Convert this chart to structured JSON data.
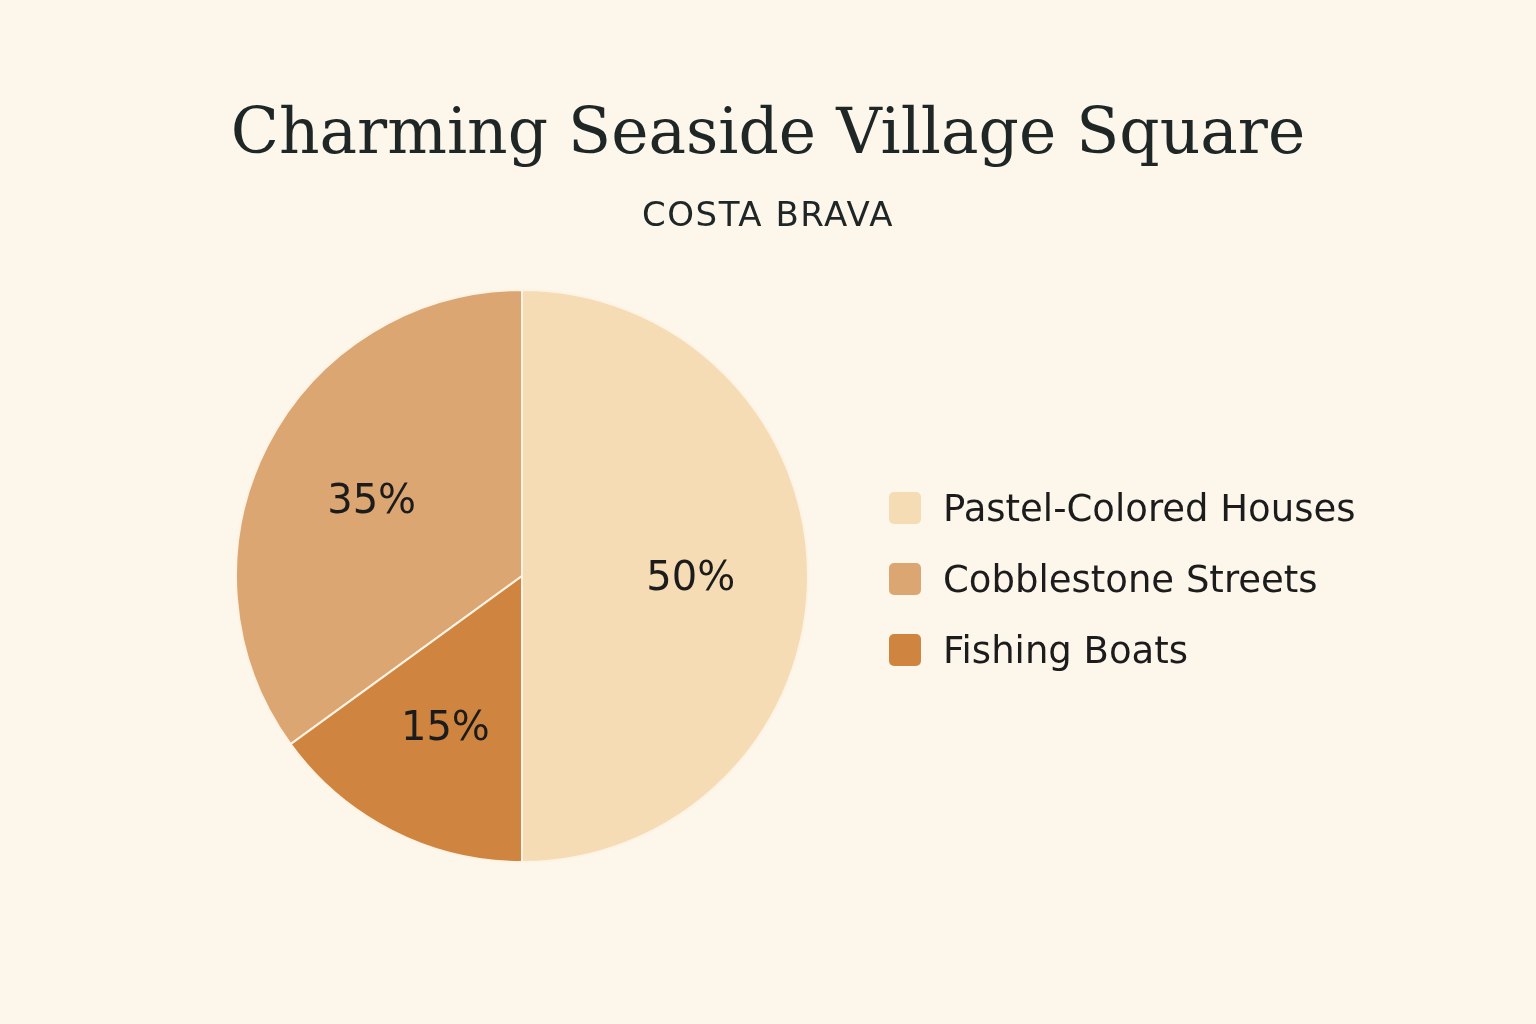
{
  "chart_data": {
    "type": "pie",
    "title": "Charming Seaside Village Square",
    "subtitle": "COSTA BRAVA",
    "categories": [
      "Pastel-Colored Houses",
      "Cobblestone Streets",
      "Fishing Boats"
    ],
    "values": [
      50,
      35,
      15
    ],
    "colors": [
      "#f5dcb4",
      "#dca672",
      "#cf8540"
    ],
    "value_labels": [
      "50%",
      "35%",
      "15%"
    ],
    "legend": "right"
  }
}
